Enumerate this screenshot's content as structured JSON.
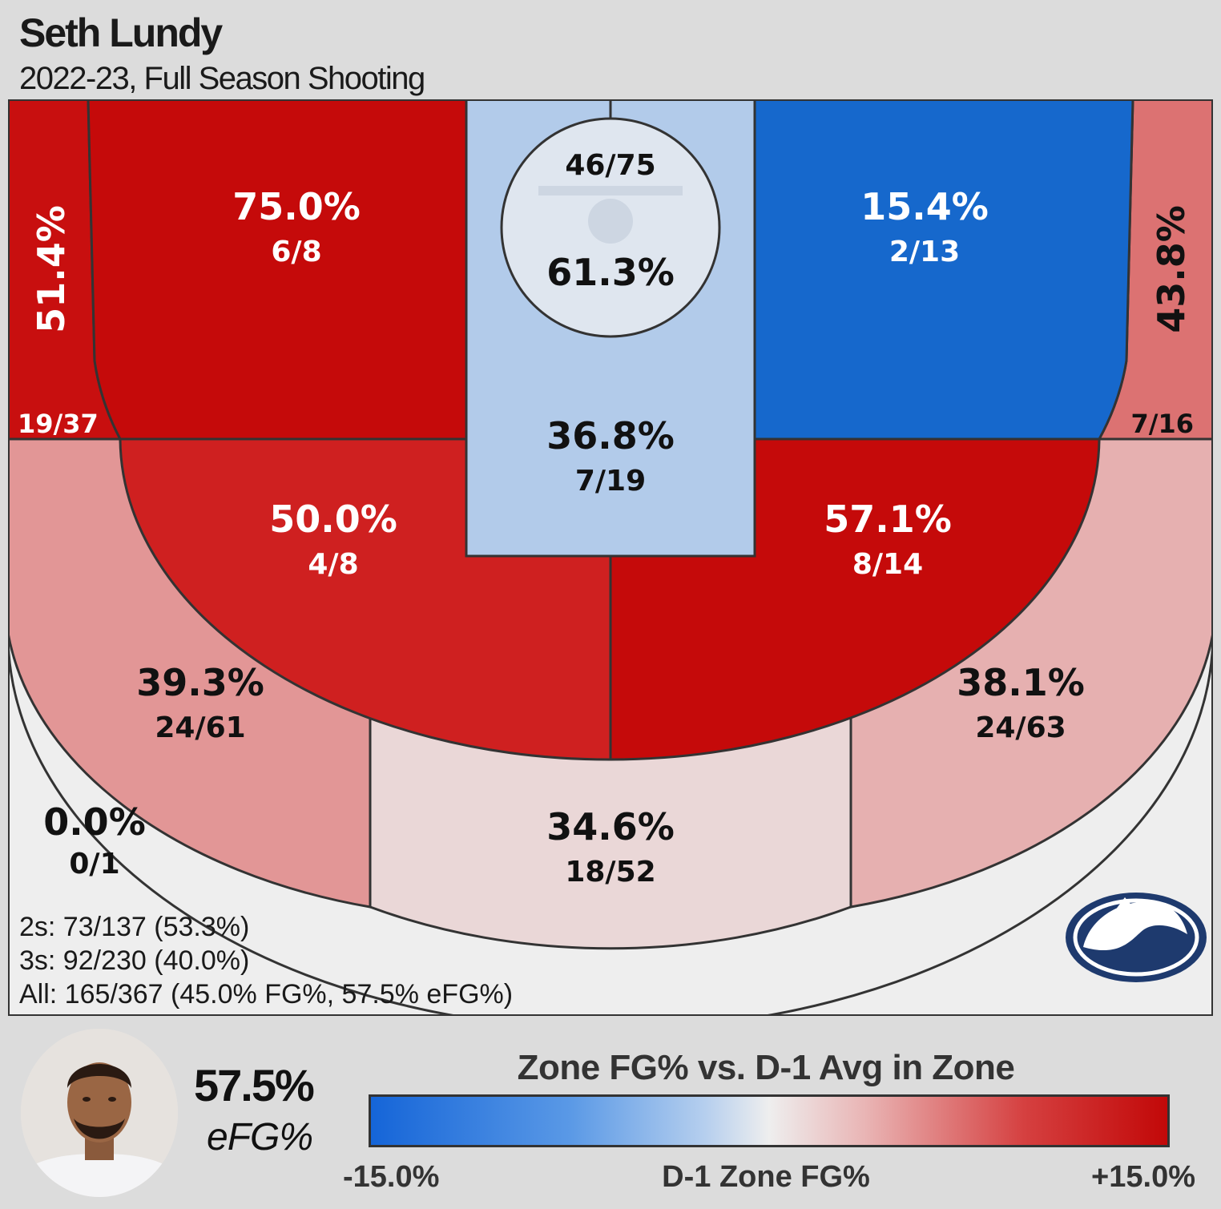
{
  "title": "Seth Lundy",
  "subtitle": "2022-23, Full Season Shooting",
  "chart_data": {
    "type": "heatmap",
    "zones": [
      {
        "id": "left-corner-three",
        "pct": "51.4%",
        "frac": "19/37",
        "color": "#c80f0f",
        "text_color": "#ffffff"
      },
      {
        "id": "left-baseline-mid",
        "pct": "75.0%",
        "frac": "6/8",
        "color": "#c50a0a",
        "text_color": "#ffffff"
      },
      {
        "id": "rim",
        "pct": "61.3%",
        "frac": "46/75",
        "color": "#dfe6ef",
        "text_color": "#111111"
      },
      {
        "id": "paint",
        "pct": "36.8%",
        "frac": "7/19",
        "color": "#b2cbea",
        "text_color": "#111111"
      },
      {
        "id": "right-baseline-mid",
        "pct": "15.4%",
        "frac": "2/13",
        "color": "#1668cc",
        "text_color": "#ffffff"
      },
      {
        "id": "right-corner-three",
        "pct": "43.8%",
        "frac": "7/16",
        "color": "#dc7272",
        "text_color": "#111111"
      },
      {
        "id": "left-elbow-mid",
        "pct": "50.0%",
        "frac": "4/8",
        "color": "#cf2020",
        "text_color": "#ffffff"
      },
      {
        "id": "right-elbow-mid",
        "pct": "57.1%",
        "frac": "8/14",
        "color": "#c50a0a",
        "text_color": "#ffffff"
      },
      {
        "id": "left-wing-three",
        "pct": "39.3%",
        "frac": "24/61",
        "color": "#e29696",
        "text_color": "#111111"
      },
      {
        "id": "top-three",
        "pct": "34.6%",
        "frac": "18/52",
        "color": "#ead7d7",
        "text_color": "#111111"
      },
      {
        "id": "right-wing-three",
        "pct": "38.1%",
        "frac": "24/63",
        "color": "#e6b0b0",
        "text_color": "#111111"
      },
      {
        "id": "heave",
        "pct": "0.0%",
        "frac": "0/1",
        "color": "#eeeeee",
        "text_color": "#111111"
      }
    ],
    "summary": [
      "2s: 73/137 (53.3%)",
      "3s: 92/230 (40.0%)",
      "All: 165/367 (45.0% FG%, 57.5% eFG%)"
    ],
    "legend": {
      "title": "Zone FG% vs. D-1 Avg in Zone",
      "min_label": "-15.0%",
      "mid_label": "D-1 Zone FG%",
      "max_label": "+15.0%",
      "min_color": "#1565d8",
      "mid_color": "#eeeeee",
      "max_color": "#c20808"
    }
  },
  "player": {
    "efg_value": "57.5%",
    "efg_label": "eFG%"
  },
  "colors": {
    "penn_state_navy": "#1e3a6e",
    "frame_gray": "#dcdcdc",
    "line": "#333333"
  }
}
